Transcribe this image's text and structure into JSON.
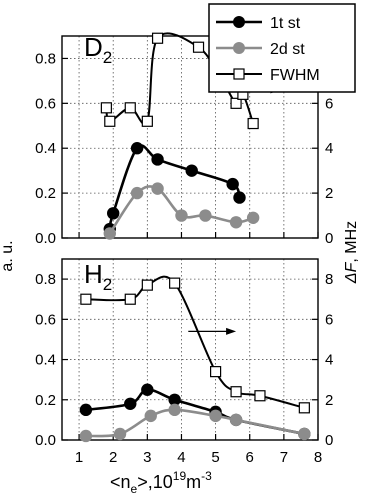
{
  "chart_data": [
    {
      "type": "line",
      "panel": "top",
      "label": "D",
      "label_sub": "2",
      "x": [],
      "xlim": [
        0.5,
        8
      ],
      "ylim": [
        0,
        0.9
      ],
      "y2lim": [
        0,
        9
      ],
      "yticks": [
        0.0,
        0.2,
        0.4,
        0.6,
        0.8
      ],
      "y2ticks": [
        0,
        2,
        4,
        6
      ],
      "grid": true,
      "legend_position": "top-right",
      "series": [
        {
          "name": "1t st",
          "axis": "left",
          "marker": "filled-circle",
          "color": "#000000",
          "x": [
            1.9,
            2.0,
            2.7,
            3.3,
            4.3,
            5.5,
            5.7
          ],
          "y": [
            0.04,
            0.11,
            0.4,
            0.35,
            0.3,
            0.24,
            0.18
          ]
        },
        {
          "name": "2d st",
          "axis": "left",
          "marker": "filled-circle",
          "color": "#8c8c8c",
          "x": [
            1.9,
            2.7,
            3.3,
            4.0,
            4.7,
            5.6,
            6.1
          ],
          "y": [
            0.02,
            0.2,
            0.22,
            0.1,
            0.1,
            0.07,
            0.09
          ]
        },
        {
          "name": "FWHM",
          "axis": "right",
          "marker": "open-square",
          "color": "#000000",
          "x": [
            1.8,
            1.9,
            2.5,
            3.0,
            3.3,
            4.5,
            5.2,
            5.6,
            5.8,
            6.1
          ],
          "y": [
            5.8,
            5.2,
            5.8,
            5.2,
            8.9,
            8.5,
            7.0,
            6.0,
            6.4,
            5.1
          ]
        }
      ],
      "arrow": {
        "x_from": 5.75,
        "x_to": 6.9,
        "y": 0.66
      }
    },
    {
      "type": "line",
      "panel": "bottom",
      "label": "H",
      "label_sub": "2",
      "xlim": [
        0.5,
        8
      ],
      "ylim": [
        0,
        0.9
      ],
      "y2lim": [
        0,
        9
      ],
      "xticks": [
        1,
        2,
        3,
        4,
        5,
        6,
        7,
        8
      ],
      "yticks": [
        0.0,
        0.2,
        0.4,
        0.6,
        0.8
      ],
      "y2ticks": [
        0,
        2,
        4,
        6,
        8
      ],
      "grid": true,
      "series": [
        {
          "name": "1t st",
          "axis": "left",
          "marker": "filled-circle",
          "color": "#000000",
          "x": [
            1.2,
            2.5,
            3.0,
            3.8,
            5.0,
            5.6,
            7.6
          ],
          "y": [
            0.15,
            0.18,
            0.25,
            0.2,
            0.14,
            0.1,
            0.03
          ]
        },
        {
          "name": "2d st",
          "axis": "left",
          "marker": "filled-circle",
          "color": "#8c8c8c",
          "x": [
            1.2,
            2.2,
            3.1,
            3.8,
            5.0,
            5.6,
            7.6
          ],
          "y": [
            0.02,
            0.03,
            0.12,
            0.15,
            0.12,
            0.1,
            0.03
          ]
        },
        {
          "name": "FWHM",
          "axis": "right",
          "marker": "open-square",
          "color": "#000000",
          "x": [
            1.2,
            2.5,
            3.0,
            3.8,
            5.0,
            5.6,
            6.3,
            7.6
          ],
          "y": [
            7.0,
            7.0,
            7.7,
            7.8,
            3.4,
            2.4,
            2.2,
            1.6
          ]
        }
      ],
      "arrow": {
        "x_from": 4.2,
        "x_to": 5.6,
        "y": 0.54
      }
    }
  ],
  "labels": {
    "y_left": "a. u.",
    "y_right_symbol": "ΔF",
    "y_right_unit": ", MHz",
    "x_prefix": "<n",
    "x_sub": "e",
    "x_mid": ">,10",
    "x_sup1": "19",
    "x_unit": "m",
    "x_sup2": "-3"
  }
}
